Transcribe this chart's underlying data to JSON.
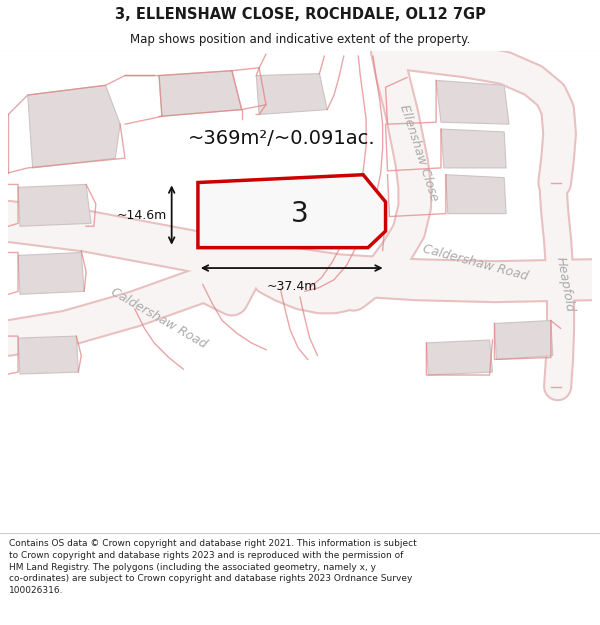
{
  "title_line1": "3, ELLENSHAW CLOSE, ROCHDALE, OL12 7GP",
  "title_line2": "Map shows position and indicative extent of the property.",
  "footer_text": "Contains OS data © Crown copyright and database right 2021. This information is subject to Crown copyright and database rights 2023 and is reproduced with the permission of HM Land Registry. The polygons (including the associated geometry, namely x, y co-ordinates) are subject to Crown copyright and database rights 2023 Ordnance Survey 100026316.",
  "map_bg": "#f7f2f2",
  "road_fill": "#f8f4f4",
  "road_edge": "#e8c0c0",
  "building_fill": "#e2dada",
  "building_edge": "#ccc4c4",
  "highlight_color": "#cc0000",
  "area_text": "~369m²/~0.091ac.",
  "width_text": "~37.4m",
  "height_text": "~14.6m",
  "plot_number": "3",
  "title_fontsize": 10.5,
  "subtitle_fontsize": 8.5,
  "footer_fontsize": 6.5,
  "area_fontsize": 14,
  "dim_fontsize": 9,
  "plot_num_fontsize": 20
}
